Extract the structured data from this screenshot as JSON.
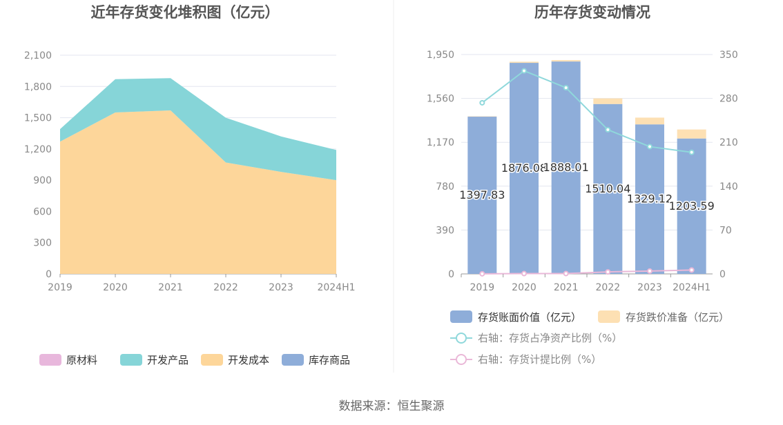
{
  "source_label": "数据来源：恒生聚源",
  "chart_data": [
    {
      "type": "area",
      "stacked": true,
      "title": "近年存货变化堆积图（亿元）",
      "categories": [
        "2019",
        "2020",
        "2021",
        "2022",
        "2023",
        "2024H1"
      ],
      "ylim": [
        0,
        2100
      ],
      "yticks": [
        "0",
        "300",
        "600",
        "900",
        "1,200",
        "1,500",
        "1,800",
        "2,100"
      ],
      "grid": true,
      "legend_position": "bottom",
      "series": [
        {
          "name": "原材料",
          "color": "#e8b7dc",
          "values": [
            0,
            0,
            0,
            0,
            0,
            0
          ]
        },
        {
          "name": "开发产品",
          "color": "#86d5d8",
          "values": [
            120,
            320,
            310,
            430,
            340,
            290
          ]
        },
        {
          "name": "开发成本",
          "color": "#fdd69a",
          "values": [
            1270,
            1550,
            1570,
            1070,
            980,
            900
          ]
        },
        {
          "name": "库存商品",
          "color": "#8eadd9",
          "values": [
            0,
            0,
            0,
            0,
            0,
            0
          ]
        }
      ]
    },
    {
      "type": "bar",
      "stacked": true,
      "title": "历年存货变动情况",
      "categories": [
        "2019",
        "2020",
        "2021",
        "2022",
        "2023",
        "2024H1"
      ],
      "ylim": [
        0,
        1950
      ],
      "yticks": [
        "0",
        "390",
        "780",
        "1,170",
        "1,560",
        "1,950"
      ],
      "y2lim": [
        0,
        350
      ],
      "y2ticks": [
        "0",
        "70",
        "140",
        "210",
        "280",
        "350"
      ],
      "grid": true,
      "legend_position": "bottom",
      "series": [
        {
          "name": "存货账面价值（亿元）",
          "kind": "bar",
          "axis": "left",
          "color": "#8eadd9",
          "values": [
            1397.83,
            1876.08,
            1888.01,
            1510.04,
            1329.12,
            1203.59
          ],
          "labels": [
            "1397.83",
            "1876.08",
            "1888.01",
            "1510.04",
            "1329.12",
            "1203.59"
          ]
        },
        {
          "name": "存货跌价准备（亿元）",
          "kind": "bar",
          "axis": "left",
          "color": "#fde0b3",
          "values": [
            3,
            10,
            12,
            50,
            60,
            80
          ]
        },
        {
          "name": "右轴：存货占净资产比例（%）",
          "kind": "line",
          "axis": "right",
          "color": "#8fd8db",
          "values": [
            273,
            324,
            297,
            230,
            203,
            194
          ]
        },
        {
          "name": "右轴：存货计提比例（%）",
          "kind": "line",
          "axis": "right",
          "color": "#eab8d8",
          "values": [
            0.2,
            0.5,
            0.6,
            3.2,
            4.5,
            6.2
          ]
        }
      ]
    }
  ]
}
